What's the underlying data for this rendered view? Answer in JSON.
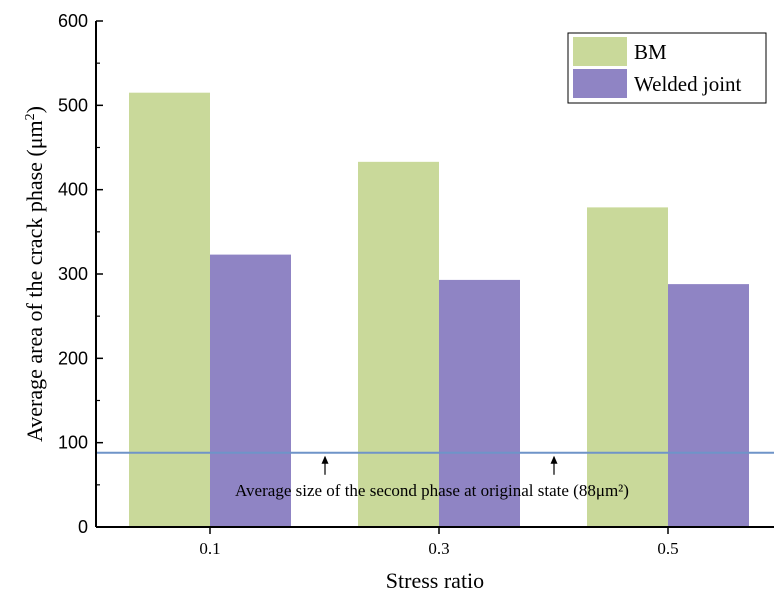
{
  "chart_data": {
    "type": "bar",
    "categories": [
      "0.1",
      "0.3",
      "0.5"
    ],
    "series": [
      {
        "name": "BM",
        "values": [
          515,
          433,
          379
        ],
        "color": "#c9d99a"
      },
      {
        "name": "Welded joint",
        "values": [
          323,
          293,
          288
        ],
        "color": "#8f84c4"
      }
    ],
    "xlabel": "Stress ratio",
    "ylabel": "Average area of the crack phase (μm",
    "ylabel_sup": "2",
    "ylabel_end": ")",
    "ylim": [
      0,
      600
    ],
    "yticks": [
      "0",
      "100",
      "200",
      "300",
      "400",
      "500",
      "600"
    ],
    "reference_line": {
      "value": 88,
      "color": "#6f94c8",
      "label": "Average size of the second phase at original state (88μm²)"
    },
    "legend_position": "top-right",
    "grid": false
  }
}
